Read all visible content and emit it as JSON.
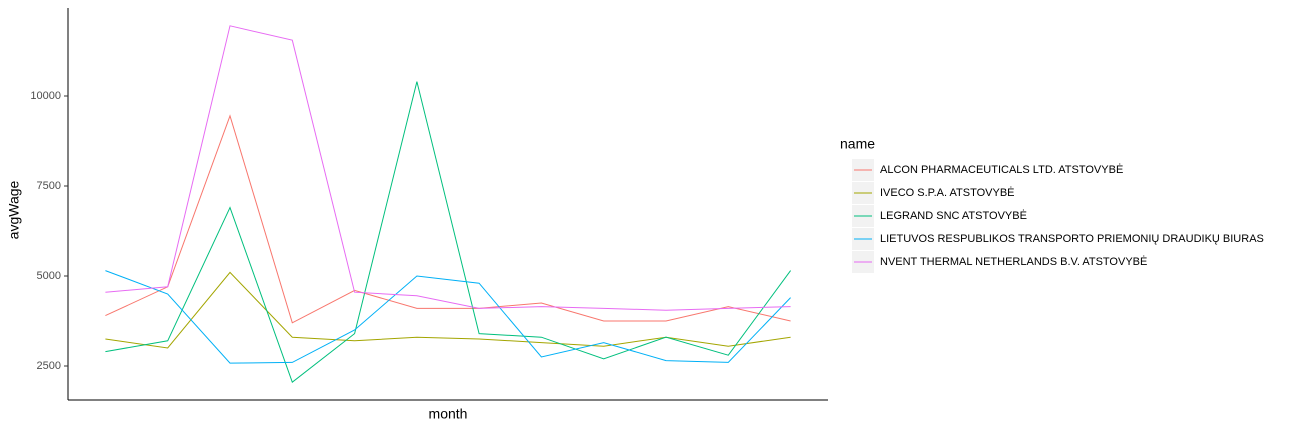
{
  "chart_data": {
    "type": "line",
    "x_label": "month",
    "y_label": "avgWage",
    "categories": [
      null,
      null,
      null,
      null,
      null,
      null,
      null,
      null,
      null,
      null,
      null,
      null
    ],
    "series": [
      {
        "name": "ALCON PHARMACEUTICALS LTD. ATSTOVYBĖ",
        "color": "#F8766D",
        "values": [
          3900,
          4700,
          9450,
          3700,
          4600,
          4100,
          4100,
          4250,
          3750,
          3750,
          4150,
          3750
        ]
      },
      {
        "name": "IVECO S.P.A. ATSTOVYBĖ",
        "color": "#A3A500",
        "values": [
          3250,
          3000,
          5100,
          3300,
          3200,
          3300,
          3250,
          3150,
          3050,
          3300,
          3050,
          3300
        ]
      },
      {
        "name": "LEGRAND SNC ATSTOVYBĖ",
        "color": "#00BF7D",
        "values": [
          2900,
          3200,
          6900,
          2050,
          3400,
          10400,
          3400,
          3300,
          2700,
          3300,
          2800,
          5150
        ]
      },
      {
        "name": "LIETUVOS RESPUBLIKOS TRANSPORTO PRIEMONIŲ DRAUDIKŲ BIURAS",
        "color": "#00B0F6",
        "values": [
          5150,
          4500,
          2580,
          2600,
          3500,
          5000,
          4800,
          2750,
          3150,
          2650,
          2600,
          4400
        ]
      },
      {
        "name": "NVENT THERMAL NETHERLANDS B.V. ATSTOVYBĖ",
        "color": "#E76BF3",
        "values": [
          4550,
          4700,
          11950,
          11550,
          4550,
          4450,
          4100,
          4150,
          4100,
          4050,
          4100,
          4150
        ]
      }
    ],
    "legend_title": "name",
    "ylim": [
      1556,
      12444
    ],
    "yticks": [
      2500,
      5000,
      7500,
      10000
    ],
    "legend": "right"
  }
}
